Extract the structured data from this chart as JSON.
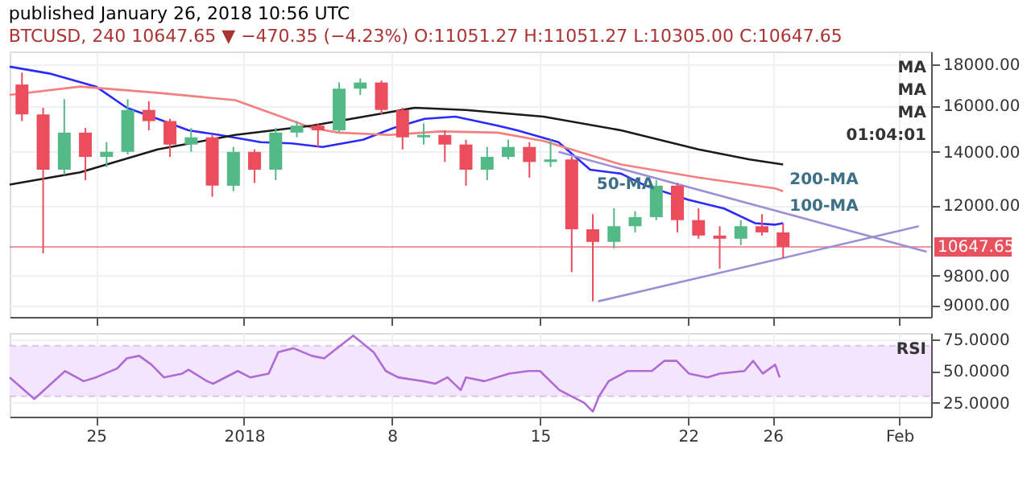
{
  "chart_data": [
    {
      "type": "candlestick",
      "title": "published January 26, 2018 10:56 UTC",
      "subtitle": "BTCUSD, 240  10647.65 ▼ −470.35 (−4.23%) O:11051.27 H:11051.27 L:10305.00 C:10647.65",
      "x": [
        "2017-12-21T12:00",
        "2017-12-22T12:00",
        "2017-12-23T12:00",
        "2017-12-24T12:00",
        "2017-12-25T12:00",
        "2017-12-26T12:00",
        "2017-12-27T12:00",
        "2017-12-28T12:00",
        "2017-12-29T12:00",
        "2017-12-30T12:00",
        "2017-12-31T12:00",
        "2018-01-01T12:00",
        "2018-01-02T12:00",
        "2018-01-03T12:00",
        "2018-01-04T12:00",
        "2018-01-05T12:00",
        "2018-01-06T12:00",
        "2018-01-07T12:00",
        "2018-01-08T12:00",
        "2018-01-09T12:00",
        "2018-01-10T12:00",
        "2018-01-11T12:00",
        "2018-01-12T12:00",
        "2018-01-13T12:00",
        "2018-01-14T12:00",
        "2018-01-15T12:00",
        "2018-01-16T12:00",
        "2018-01-17T12:00",
        "2018-01-18T12:00",
        "2018-01-19T12:00",
        "2018-01-20T12:00",
        "2018-01-21T12:00",
        "2018-01-22T12:00",
        "2018-01-23T12:00",
        "2018-01-24T12:00",
        "2018-01-25T12:00",
        "2018-01-26T12:00"
      ],
      "ohlc": [
        [
          17000,
          17600,
          15300,
          15600
        ],
        [
          15600,
          15900,
          10450,
          13300
        ],
        [
          13300,
          16300,
          13100,
          14800
        ],
        [
          14800,
          15000,
          12900,
          13800
        ],
        [
          13800,
          14400,
          13400,
          14000
        ],
        [
          14000,
          16300,
          13900,
          15800
        ],
        [
          15800,
          16200,
          14900,
          15300
        ],
        [
          15300,
          15400,
          13800,
          14300
        ],
        [
          14300,
          15000,
          14000,
          14600
        ],
        [
          14600,
          14700,
          12300,
          12700
        ],
        [
          12700,
          14200,
          12500,
          14000
        ],
        [
          14000,
          14100,
          12800,
          13300
        ],
        [
          13300,
          15000,
          12900,
          14800
        ],
        [
          14800,
          15300,
          14600,
          15100
        ],
        [
          15100,
          15200,
          14200,
          14900
        ],
        [
          14900,
          17100,
          14800,
          16800
        ],
        [
          16800,
          17300,
          16500,
          17100
        ],
        [
          17100,
          17200,
          15600,
          15800
        ],
        [
          15800,
          15900,
          14100,
          14600
        ],
        [
          14600,
          15200,
          14300,
          14700
        ],
        [
          14700,
          14900,
          13600,
          14300
        ],
        [
          14300,
          14500,
          12700,
          13300
        ],
        [
          13300,
          14200,
          12900,
          13800
        ],
        [
          13800,
          14500,
          13700,
          14200
        ],
        [
          14200,
          14400,
          13000,
          13600
        ],
        [
          13600,
          14500,
          13400,
          13700
        ],
        [
          13700,
          13800,
          9900,
          11200
        ],
        [
          11200,
          11700,
          9100,
          10800
        ],
        [
          10800,
          11900,
          10600,
          11300
        ],
        [
          11300,
          11800,
          11100,
          11600
        ],
        [
          11600,
          12900,
          11500,
          12700
        ],
        [
          12700,
          12800,
          11100,
          11500
        ],
        [
          11500,
          11900,
          10900,
          11000
        ],
        [
          11000,
          11300,
          10000,
          10900
        ],
        [
          10900,
          11500,
          10700,
          11300
        ],
        [
          11300,
          11700,
          11000,
          11100
        ],
        [
          11100,
          11400,
          10305,
          10647.65
        ]
      ],
      "series": [
        {
          "type": "line",
          "color": "#2a2aff",
          "x": [
            "2017-12-20T22:00",
            "2017-12-22T19:00",
            "2017-12-25T00:00",
            "2017-12-26T11:00",
            "2017-12-27T22:00",
            "2017-12-29T09:00",
            "2017-12-30T20:00",
            "2018-01-01T19:00",
            "2018-01-03T06:00",
            "2018-01-04T17:00",
            "2018-01-06T15:00",
            "2018-01-08T02:00",
            "2018-01-09T13:00",
            "2018-01-11T00:00",
            "2018-01-13T00:00",
            "2018-01-13T22:00",
            "2018-01-15T21:00",
            "2018-01-17T09:00",
            "2018-01-18T20:00",
            "2018-01-20T00:00",
            "2018-01-22T00:00",
            "2018-01-23T17:00",
            "2018-01-25T04:00",
            "2018-01-26T03:00",
            "2018-01-26T12:00"
          ],
          "values": [
            17900,
            17550,
            16900,
            15900,
            15400,
            14900,
            14700,
            14400,
            14350,
            14200,
            14500,
            15000,
            15400,
            15500,
            15100,
            14900,
            14400,
            13300,
            13150,
            12700,
            12200,
            11890,
            11400,
            11350,
            11400
          ]
        },
        {
          "type": "line",
          "color": "#f47f7f",
          "x": [
            "2017-12-20T22:00",
            "2017-12-24T06:00",
            "2017-12-27T22:00",
            "2017-12-31T14:00",
            "2018-01-02T18:00",
            "2018-01-04T05:00",
            "2018-01-05T11:00",
            "2018-01-07T21:00",
            "2018-01-10T07:00",
            "2018-01-13T00:00",
            "2018-01-15T04:00",
            "2018-01-18T20:00",
            "2018-01-22T12:00",
            "2018-01-26T03:00",
            "2018-01-26T12:00"
          ],
          "values": [
            16500,
            16900,
            16600,
            16250,
            15500,
            15000,
            14800,
            14700,
            14850,
            14800,
            14450,
            13500,
            13000,
            12600,
            12500
          ]
        },
        {
          "type": "line",
          "color": "#1a1a1a",
          "x": [
            "2017-12-20T22:00",
            "2017-12-24T06:00",
            "2017-12-27T22:00",
            "2017-12-31T14:00",
            "2018-01-04T05:00",
            "2018-01-07T21:00",
            "2018-01-09T02:00",
            "2018-01-11T12:00",
            "2018-01-15T04:00",
            "2018-01-18T20:00",
            "2018-01-22T12:00",
            "2018-01-24T22:00",
            "2018-01-26T12:00"
          ],
          "values": [
            12740,
            13200,
            14100,
            14700,
            15100,
            15700,
            15900,
            15800,
            15500,
            14900,
            14100,
            13700,
            13500
          ]
        },
        {
          "type": "line",
          "color": "#9b8fd6",
          "x": [
            "2018-01-15T21:00",
            "2018-02-02T07:00"
          ],
          "values": [
            14000,
            10500
          ]
        },
        {
          "type": "line",
          "color": "#9b8fd6",
          "x": [
            "2018-01-17T18:00",
            "2018-02-01T22:00"
          ],
          "values": [
            9100,
            11300
          ]
        }
      ],
      "log": true,
      "xlim": [
        "2017-12-20T22:00",
        "2018-02-02T12:00"
      ],
      "ylim": [
        8700,
        18700
      ],
      "xticks": [
        {
          "value": "2017-12-25T00:00",
          "label": null
        },
        {
          "value": "2018-01-01T00:00",
          "label": null
        },
        {
          "value": "2018-01-08T00:00",
          "label": null
        },
        {
          "value": "2018-01-15T00:00",
          "label": null
        },
        {
          "value": "2018-01-22T00:00",
          "label": null
        },
        {
          "value": "2018-01-26T00:00",
          "label": null
        },
        {
          "value": "2018-02-01T00:00",
          "label": null
        }
      ],
      "yticks": [
        {
          "value": 9000,
          "label": "9000.00"
        },
        {
          "value": 9800,
          "label": "9800.00"
        },
        {
          "value": 12000,
          "label": "12000.00"
        },
        {
          "value": 14000,
          "label": "14000.00"
        },
        {
          "value": 16000,
          "label": "16000.00"
        },
        {
          "value": 18000,
          "label": "18000.00"
        }
      ],
      "grid": true,
      "tick_labels": "y",
      "ref_lines": [
        {
          "axis": "y",
          "value": 10647.65,
          "label": "10647.65",
          "color": "#e8525e"
        }
      ],
      "annotations": [
        {
          "text": "200-MA",
          "x": "2018-01-26T12:00",
          "y": 13500
        },
        {
          "text": "100-MA",
          "x": "2018-01-26T12:00",
          "y": 12500
        },
        {
          "text": "50-MA",
          "x": "2018-01-17T09:00",
          "y": 13300
        },
        "MA",
        "MA",
        "MA",
        "01:04:01"
      ]
    },
    {
      "type": "line",
      "x": [
        "2017-12-20T22:00",
        "2017-12-22T02:00",
        "2017-12-23T13:00",
        "2017-12-24T10:00",
        "2017-12-25T00:00",
        "2017-12-26T00:00",
        "2017-12-26T11:00",
        "2017-12-27T01:00",
        "2017-12-27T15:00",
        "2017-12-28T05:00",
        "2017-12-29T02:00",
        "2017-12-29T09:00",
        "2017-12-30T06:00",
        "2017-12-30T13:00",
        "2017-12-31T17:00",
        "2018-01-01T07:00",
        "2018-01-02T04:00",
        "2018-01-02T15:00",
        "2018-01-03T08:00",
        "2018-01-04T05:00",
        "2018-01-04T19:00",
        "2018-01-06T04:00",
        "2018-01-07T03:00",
        "2018-01-07T17:00",
        "2018-01-08T07:00",
        "2018-01-09T11:00",
        "2018-01-10T01:00",
        "2018-01-10T15:00",
        "2018-01-11T06:00",
        "2018-01-11T12:00",
        "2018-01-12T09:00",
        "2018-01-13T13:00",
        "2018-01-14T11:00",
        "2018-01-15T00:00",
        "2018-01-15T22:00",
        "2018-01-16T12:00",
        "2018-01-17T02:00",
        "2018-01-17T12:00",
        "2018-01-17T19:00",
        "2018-01-18T06:00",
        "2018-01-19T03:00",
        "2018-01-20T07:00",
        "2018-01-20T21:00",
        "2018-01-21T11:00",
        "2018-01-22T01:00",
        "2018-01-22T22:00",
        "2018-01-23T12:00",
        "2018-01-24T16:00",
        "2018-01-25T02:00",
        "2018-01-25T13:00",
        "2018-01-26T03:00",
        "2018-01-26T08:00"
      ],
      "series": [
        {
          "color": "#b06ad6",
          "values": [
            45,
            28,
            50,
            42,
            45,
            52,
            60,
            62,
            55,
            45,
            48,
            51,
            42,
            40,
            50,
            45,
            48,
            65,
            68,
            62,
            60,
            78,
            65,
            50,
            45,
            42,
            40,
            45,
            35,
            45,
            42,
            48,
            50,
            50,
            35,
            30,
            25,
            18,
            30,
            42,
            50,
            50,
            58,
            58,
            48,
            45,
            48,
            50,
            58,
            48,
            55,
            45
          ]
        }
      ],
      "xlim": [
        "2017-12-20T22:00",
        "2018-02-02T12:00"
      ],
      "ylim": [
        14,
        80
      ],
      "xticks": [
        {
          "value": "2017-12-25T00:00",
          "label": "25"
        },
        {
          "value": "2018-01-01T00:00",
          "label": "2018"
        },
        {
          "value": "2018-01-08T00:00",
          "label": "8"
        },
        {
          "value": "2018-01-15T00:00",
          "label": "15"
        },
        {
          "value": "2018-01-22T00:00",
          "label": "22"
        },
        {
          "value": "2018-01-26T00:00",
          "label": "26"
        },
        {
          "value": "2018-02-01T00:00",
          "label": "Feb"
        }
      ],
      "yticks": [
        {
          "value": 25,
          "label": "25.0000"
        },
        {
          "value": 50,
          "label": "50.0000"
        },
        {
          "value": 75,
          "label": "75.0000"
        }
      ],
      "grid": true,
      "bands": [
        {
          "axis": "y",
          "from": 30,
          "to": 70,
          "color": "#f3e5fb"
        }
      ],
      "ref_lines": [
        {
          "axis": "y",
          "value": 30,
          "color": "#c9a6e0",
          "line_style": "dashed"
        },
        {
          "axis": "y",
          "value": 70,
          "color": "#c9a6e0",
          "line_style": "dashed"
        }
      ],
      "annotations": [
        "RSI"
      ]
    }
  ]
}
